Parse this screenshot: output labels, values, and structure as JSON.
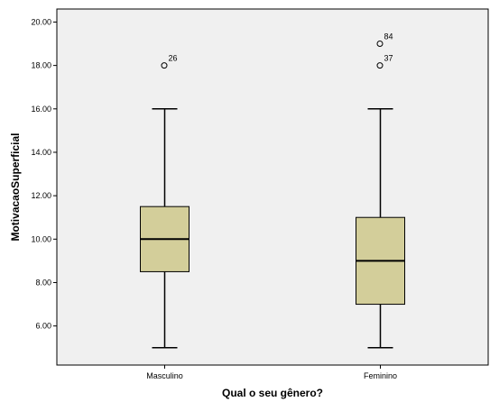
{
  "chart_data": {
    "type": "boxplot",
    "title": "",
    "xlabel": "Qual o seu gênero?",
    "ylabel": "MotivacaoSuperficial",
    "ylim": [
      4.2,
      20.6
    ],
    "yticks": [
      "6.00",
      "8.00",
      "10.00",
      "12.00",
      "14.00",
      "16.00",
      "18.00",
      "20.00"
    ],
    "categories": [
      "Masculino",
      "Feminino"
    ],
    "boxes": [
      {
        "category": "Masculino",
        "whisker_low": 5,
        "q1": 8.5,
        "median": 10,
        "q3": 11.5,
        "whisker_high": 16,
        "outliers": [
          {
            "value": 18,
            "label": "26"
          }
        ]
      },
      {
        "category": "Feminino",
        "whisker_low": 5,
        "q1": 7,
        "median": 9,
        "q3": 11,
        "whisker_high": 16,
        "outliers": [
          {
            "value": 19,
            "label": "84"
          },
          {
            "value": 18,
            "label": "37"
          }
        ]
      }
    ],
    "grid": false,
    "colors": {
      "box_fill": "#d3ce9a",
      "plot_bg": "#f0f0f0",
      "stroke": "#000000"
    }
  }
}
